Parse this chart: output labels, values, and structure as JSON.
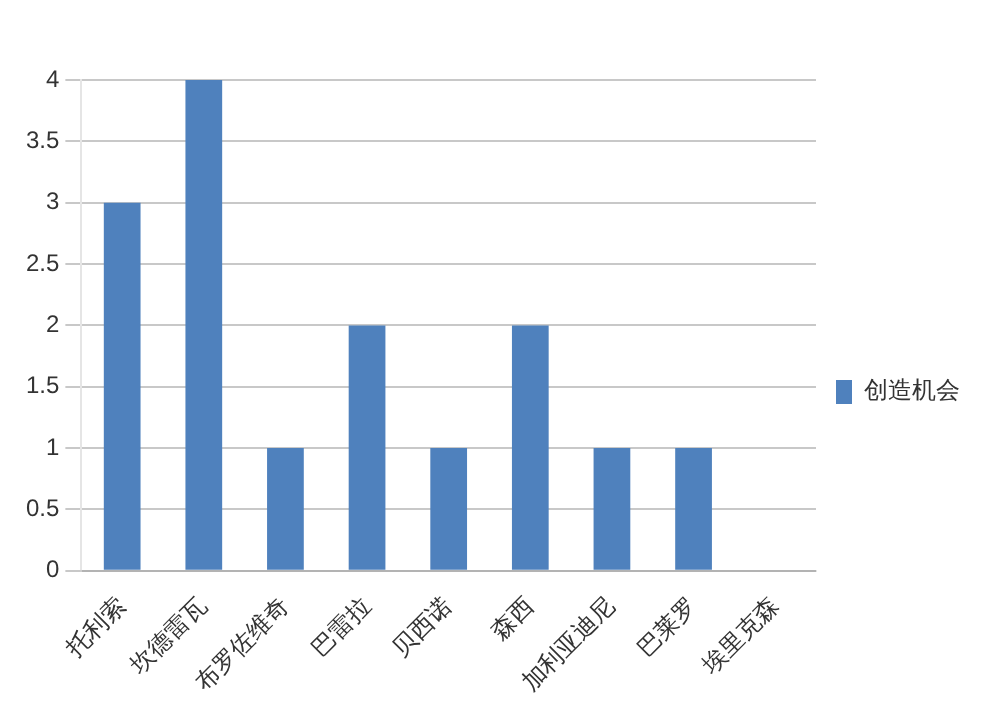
{
  "chart_data": {
    "type": "bar",
    "categories": [
      "托利索",
      "坎德雷瓦",
      "布罗佐维奇",
      "巴雷拉",
      "贝西诺",
      "森西",
      "加利亚迪尼",
      "巴莱罗",
      "埃里克森"
    ],
    "series": [
      {
        "name": "创造机会",
        "color": "#4f81bd",
        "values": [
          3,
          4,
          1,
          2,
          1,
          2,
          1,
          1,
          0
        ]
      }
    ],
    "ylim": [
      0,
      4
    ],
    "yticks": [
      0,
      0.5,
      1,
      1.5,
      2,
      2.5,
      3,
      3.5,
      4
    ],
    "grid": "y",
    "legend": "right"
  }
}
